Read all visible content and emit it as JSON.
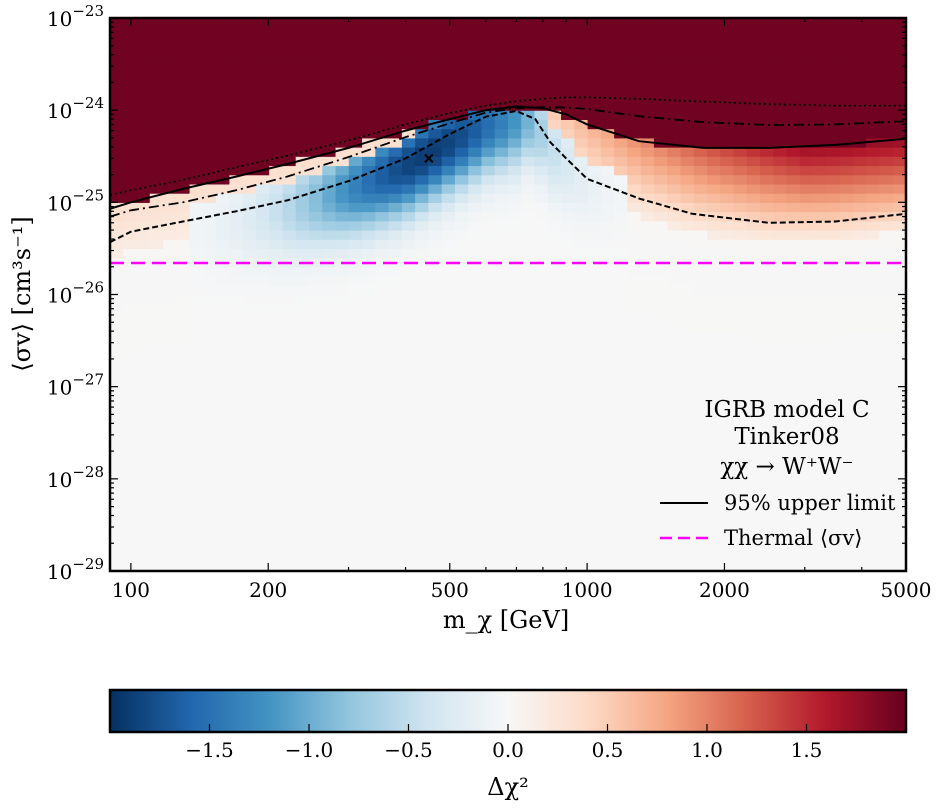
{
  "chart_data": {
    "type": "heatmap",
    "xlabel": "m_χ [GeV]",
    "ylabel": "⟨σv⟩ [cm³s⁻¹]",
    "xscale": "log",
    "yscale": "log",
    "xlim": [
      90,
      5000
    ],
    "ylim": [
      1e-29,
      1e-23
    ],
    "x_ticks": [
      {
        "value": 100,
        "label": "100"
      },
      {
        "value": 200,
        "label": "200"
      },
      {
        "value": 500,
        "label": "500"
      },
      {
        "value": 1000,
        "label": "1000"
      },
      {
        "value": 2000,
        "label": "2000"
      },
      {
        "value": 5000,
        "label": "5000"
      }
    ],
    "y_ticks": [
      {
        "value": 1e-29,
        "base": "10",
        "exp": "−29"
      },
      {
        "value": 1e-28,
        "base": "10",
        "exp": "−28"
      },
      {
        "value": 1e-27,
        "base": "10",
        "exp": "−27"
      },
      {
        "value": 1e-26,
        "base": "10",
        "exp": "−26"
      },
      {
        "value": 1e-25,
        "base": "10",
        "exp": "−25"
      },
      {
        "value": 1e-24,
        "base": "10",
        "exp": "−24"
      },
      {
        "value": 1e-23,
        "base": "10",
        "exp": "−23"
      }
    ],
    "annotation": [
      "IGRB model C",
      "Tinker08",
      "χχ → W⁺W⁻"
    ],
    "legend": [
      {
        "label": "95% upper limit",
        "style": "solid",
        "color": "#000000"
      },
      {
        "label": "Thermal ⟨σv⟩",
        "style": "dashed",
        "color": "#ff00ff"
      }
    ],
    "thermal_cross_section": 2.2e-26,
    "best_fit": {
      "m": 450,
      "sv": 3e-25
    },
    "upper_limit_95": {
      "m": [
        90,
        100,
        130,
        170,
        220,
        300,
        400,
        500,
        600,
        700,
        800,
        900,
        1000,
        1300,
        1800,
        2500,
        3500,
        5000
      ],
      "sv": [
        8.5e-26,
        1e-25,
        1.4e-25,
        1.9e-25,
        2.6e-25,
        3.9e-25,
        6e-25,
        8e-25,
        1e-24,
        1.1e-24,
        1.05e-24,
        9e-25,
        7e-25,
        4.6e-25,
        3.9e-25,
        3.9e-25,
        4.2e-25,
        4.9e-25
      ]
    },
    "contour_1sigma": {
      "m": [
        90,
        100,
        130,
        170,
        220,
        300,
        400,
        500,
        600,
        700,
        770,
        830,
        900,
        1000,
        1300,
        1700,
        2500,
        3500,
        5000
      ],
      "sv": [
        3.7e-26,
        4.8e-26,
        6.2e-26,
        8e-26,
        1.05e-25,
        1.7e-25,
        3e-25,
        5.5e-25,
        8.5e-25,
        9.8e-25,
        8e-25,
        4.5e-25,
        3e-25,
        1.8e-25,
        1.1e-25,
        7.5e-26,
        6e-26,
        6.2e-26,
        7.5e-26
      ]
    },
    "contour_2sigma": {
      "m": [
        90,
        100,
        130,
        170,
        220,
        300,
        400,
        500,
        600,
        700,
        800,
        900,
        1000,
        1300,
        1800,
        2500,
        3500,
        5000
      ],
      "sv": [
        7e-26,
        8.2e-26,
        1e-25,
        1.35e-25,
        1.9e-25,
        3.1e-25,
        5.1e-25,
        7.2e-25,
        9.4e-25,
        1.05e-24,
        1.08e-24,
        1.07e-24,
        1.03e-24,
        8.6e-25,
        7.4e-25,
        6.9e-25,
        7e-25,
        7.6e-25
      ]
    },
    "contour_3sigma": {
      "m": [
        90,
        100,
        130,
        170,
        220,
        300,
        400,
        500,
        600,
        700,
        800,
        900,
        1000,
        1300,
        1800,
        2500,
        3500,
        5000
      ],
      "sv": [
        1.2e-25,
        1.35e-25,
        1.75e-25,
        2.4e-25,
        3.2e-25,
        4.7e-25,
        7e-25,
        9.3e-25,
        1.12e-24,
        1.25e-24,
        1.33e-24,
        1.38e-24,
        1.38e-24,
        1.33e-24,
        1.24e-24,
        1.16e-24,
        1.12e-24,
        1.12e-24
      ]
    },
    "colorbar": {
      "label": "Δχ²",
      "range": [
        -2.0,
        2.0
      ],
      "ticks": [
        {
          "value": -1.5,
          "label": "−1.5"
        },
        {
          "value": -1.0,
          "label": "−1.0"
        },
        {
          "value": -0.5,
          "label": "−0.5"
        },
        {
          "value": 0.0,
          "label": "0.0"
        },
        {
          "value": 0.5,
          "label": "0.5"
        },
        {
          "value": 1.0,
          "label": "1.0"
        },
        {
          "value": 1.5,
          "label": "1.5"
        }
      ],
      "colormap": [
        "#053061",
        "#2166ac",
        "#4393c3",
        "#92c5de",
        "#d1e5f0",
        "#f7f7f7",
        "#fddbc7",
        "#f4a582",
        "#d6604d",
        "#b2182b",
        "#67001f"
      ]
    }
  }
}
